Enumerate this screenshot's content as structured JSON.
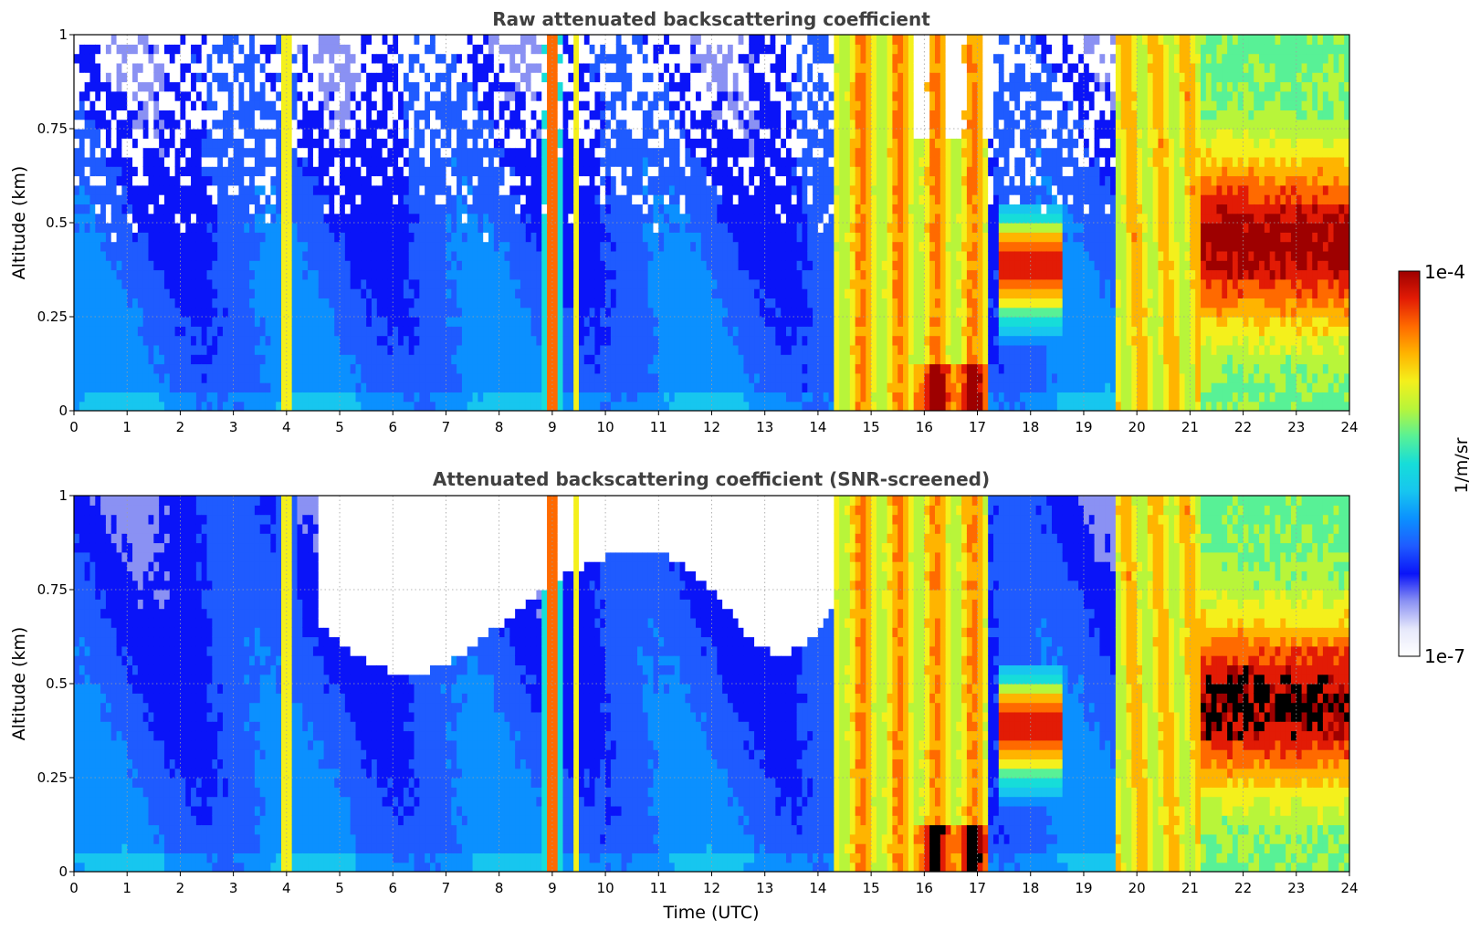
{
  "figure": {
    "colormap": [
      "#ffffff",
      "#e6e8fb",
      "#8a91f3",
      "#0a14f8",
      "#1f5bff",
      "#0b90ff",
      "#17c6ef",
      "#16ddd9",
      "#58f196",
      "#b8f53a",
      "#f4f01c",
      "#ffb400",
      "#ff6a00",
      "#e21b05",
      "#9e0000"
    ],
    "colorbar": {
      "label": "1/m/sr",
      "max_label": "1e-4",
      "min_label": "1e-7"
    }
  },
  "chart_data": [
    {
      "type": "heatmap",
      "title": "Raw attenuated backscattering coefficient",
      "xlabel": "",
      "ylabel": "Altitude (km)",
      "xlim": [
        0,
        24
      ],
      "ylim": [
        0,
        1
      ],
      "x_ticks": [
        "0",
        "1",
        "2",
        "3",
        "4",
        "5",
        "6",
        "7",
        "8",
        "9",
        "10",
        "11",
        "12",
        "13",
        "14",
        "15",
        "16",
        "17",
        "18",
        "19",
        "20",
        "21",
        "22",
        "23",
        "24"
      ],
      "y_ticks": [
        "0",
        "0.25",
        "0.5",
        "0.75",
        "1"
      ],
      "grid": true,
      "screened": false
    },
    {
      "type": "heatmap",
      "title": "Attenuated backscattering coefficient (SNR-screened)",
      "xlabel": "Time (UTC)",
      "ylabel": "Altitude (km)",
      "xlim": [
        0,
        24
      ],
      "ylim": [
        0,
        1
      ],
      "x_ticks": [
        "0",
        "1",
        "2",
        "3",
        "4",
        "5",
        "6",
        "7",
        "8",
        "9",
        "10",
        "11",
        "12",
        "13",
        "14",
        "15",
        "16",
        "17",
        "18",
        "19",
        "20",
        "21",
        "22",
        "23",
        "24"
      ],
      "y_ticks": [
        "0",
        "0.25",
        "0.5",
        "0.75",
        "1"
      ],
      "grid": true,
      "screened": true
    }
  ]
}
